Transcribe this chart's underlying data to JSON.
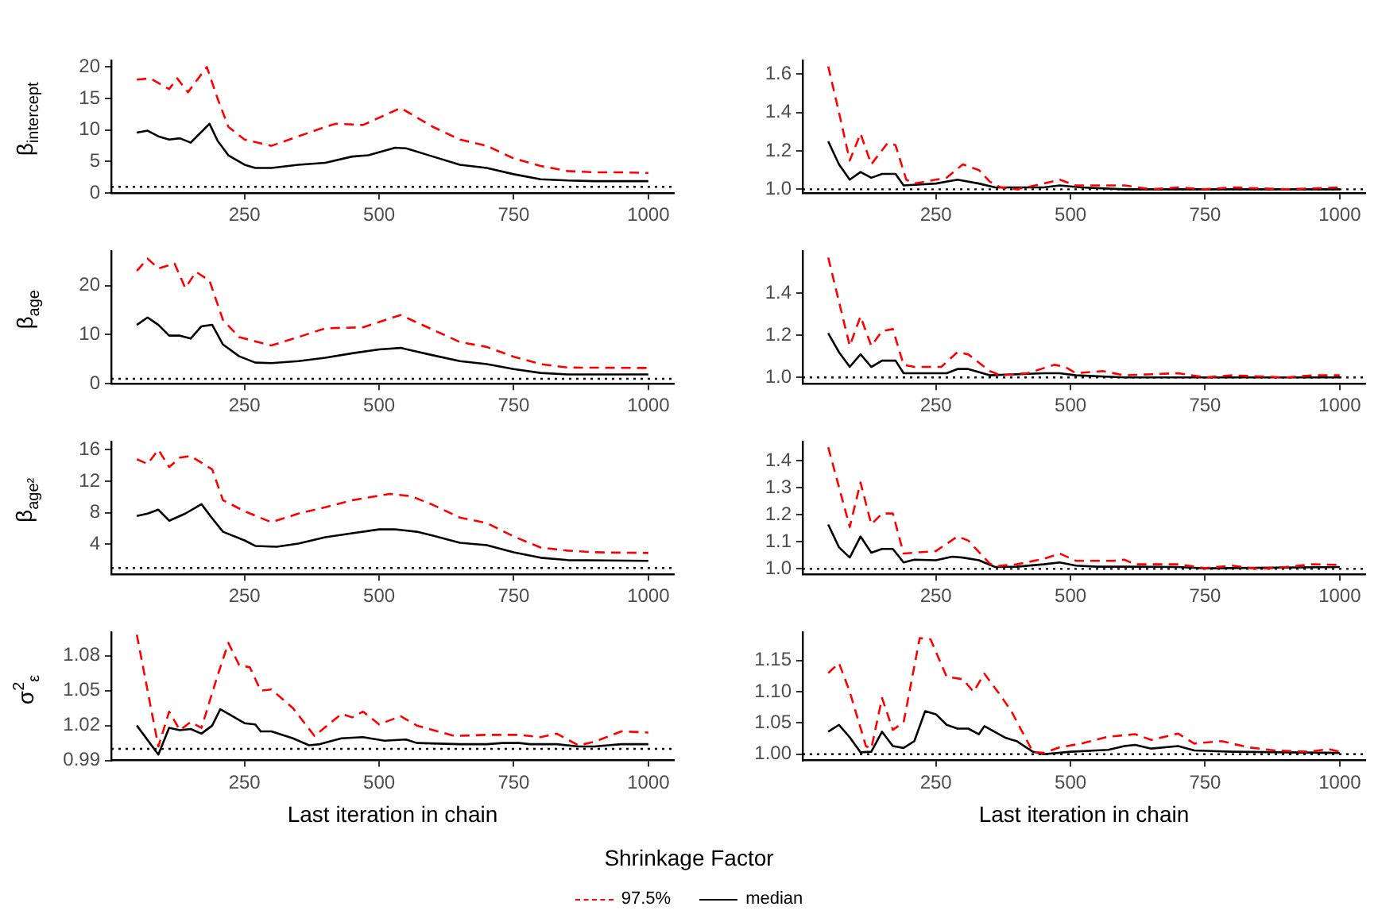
{
  "chart_data": [
    {
      "type": "line",
      "ylabel": "β$_{intercept}$",
      "xlim": [
        2.5,
        1047.5
      ],
      "xticks": [
        250,
        500,
        750,
        1000
      ],
      "ylim": [
        0,
        21
      ],
      "yticks": [
        0,
        5,
        10,
        15,
        20
      ],
      "grid": false,
      "legend": "bottom",
      "legend_title": "Shrinkage Factor",
      "ref_lines": [
        {
          "axis": "y",
          "value": 1,
          "line_style": "dotted",
          "color": "#000000"
        }
      ],
      "series": [
        {
          "name": "97.5%",
          "color": "#ff0000",
          "line_style": "dashed",
          "x": [
            50,
            75,
            110,
            125,
            145,
            180,
            200,
            220,
            250,
            300,
            350,
            400,
            420,
            470,
            540,
            600,
            650,
            700,
            750,
            800,
            850,
            900,
            950,
            1000
          ],
          "values": [
            18,
            18.2,
            16.5,
            18.2,
            16,
            20,
            15,
            10.5,
            8.5,
            7.5,
            9,
            10.5,
            11,
            10.8,
            13.5,
            10.5,
            8.5,
            7.5,
            5.5,
            4.3,
            3.5,
            3.3,
            3.3,
            3.2
          ]
        },
        {
          "name": "median",
          "color": "#000000",
          "line_style": "solid",
          "x": [
            50,
            70,
            90,
            110,
            130,
            150,
            185,
            200,
            220,
            250,
            270,
            300,
            350,
            400,
            450,
            480,
            530,
            550,
            600,
            650,
            700,
            750,
            800,
            850,
            900,
            1000
          ],
          "values": [
            9.6,
            9.9,
            9,
            8.5,
            8.7,
            8,
            11,
            8.3,
            6,
            4.5,
            4,
            4,
            4.5,
            4.8,
            5.8,
            6,
            7.2,
            7.1,
            5.8,
            4.5,
            4,
            3,
            2.2,
            2,
            1.9,
            1.9
          ]
        }
      ]
    },
    {
      "type": "line",
      "xlim": [
        2.5,
        1047.5
      ],
      "xticks": [
        250,
        500,
        750,
        1000
      ],
      "ylim": [
        0.98,
        1.67
      ],
      "yticks": [
        {
          "value": 1,
          "label": "1.0"
        },
        1.2,
        1.4,
        1.6
      ],
      "grid": false,
      "ref_lines": [
        {
          "axis": "y",
          "value": 1,
          "line_style": "dotted",
          "color": "#000000"
        }
      ],
      "series": [
        {
          "color": "#ff0000",
          "line_style": "dashed",
          "x": [
            50,
            70,
            90,
            110,
            130,
            160,
            175,
            195,
            210,
            250,
            270,
            300,
            330,
            350,
            370,
            400,
            450,
            480,
            510,
            600,
            650,
            700,
            750,
            800,
            900,
            1000
          ],
          "values": [
            1.64,
            1.4,
            1.15,
            1.29,
            1.13,
            1.24,
            1.23,
            1.05,
            1.03,
            1.05,
            1.06,
            1.13,
            1.1,
            1.04,
            1.01,
            1.0,
            1.03,
            1.05,
            1.02,
            1.02,
            1.0,
            1.01,
            1.0,
            1.01,
            1.0,
            1.01
          ]
        },
        {
          "color": "#000000",
          "line_style": "solid",
          "x": [
            50,
            70,
            90,
            110,
            130,
            150,
            175,
            190,
            250,
            290,
            330,
            360,
            450,
            480,
            520,
            600,
            700,
            800,
            1000
          ],
          "values": [
            1.25,
            1.13,
            1.05,
            1.09,
            1.06,
            1.08,
            1.08,
            1.02,
            1.03,
            1.05,
            1.03,
            1.01,
            1.01,
            1.02,
            1.01,
            1.0,
            1.0,
            1.0,
            1.0
          ]
        }
      ]
    },
    {
      "type": "line",
      "ylabel": "β$_{age}$",
      "xlim": [
        2.5,
        1047.5
      ],
      "xticks": [
        250,
        500,
        750,
        1000
      ],
      "ylim": [
        0,
        27
      ],
      "yticks": [
        0,
        10,
        20
      ],
      "grid": false,
      "ref_lines": [
        {
          "axis": "y",
          "value": 1,
          "line_style": "dotted",
          "color": "#000000"
        }
      ],
      "series": [
        {
          "color": "#ff0000",
          "line_style": "dashed",
          "x": [
            50,
            70,
            90,
            120,
            140,
            160,
            185,
            210,
            240,
            300,
            350,
            400,
            470,
            540,
            600,
            650,
            700,
            750,
            800,
            850,
            1000
          ],
          "values": [
            23,
            25.5,
            23.5,
            24.5,
            19.5,
            22.8,
            21,
            13,
            9.5,
            7.8,
            9.5,
            11.3,
            11.5,
            14,
            11,
            8.5,
            7.5,
            5.5,
            4,
            3.3,
            3.2
          ]
        },
        {
          "color": "#000000",
          "line_style": "solid",
          "x": [
            50,
            70,
            90,
            110,
            130,
            150,
            170,
            190,
            210,
            240,
            270,
            300,
            350,
            400,
            450,
            500,
            540,
            600,
            650,
            700,
            750,
            800,
            850,
            1000
          ],
          "values": [
            12,
            13.5,
            12,
            9.8,
            9.8,
            9.2,
            11.7,
            12,
            8,
            5.6,
            4.3,
            4.2,
            4.6,
            5.3,
            6.2,
            7,
            7.3,
            5.8,
            4.6,
            4,
            3,
            2.2,
            1.9,
            1.9
          ]
        }
      ]
    },
    {
      "type": "line",
      "xlim": [
        2.5,
        1047.5
      ],
      "xticks": [
        250,
        500,
        750,
        1000
      ],
      "ylim": [
        0.97,
        1.6
      ],
      "yticks": [
        {
          "value": 1,
          "label": "1.0"
        },
        1.2,
        1.4
      ],
      "grid": false,
      "ref_lines": [
        {
          "axis": "y",
          "value": 1,
          "line_style": "dotted",
          "color": "#000000"
        }
      ],
      "series": [
        {
          "color": "#ff0000",
          "line_style": "dashed",
          "x": [
            50,
            90,
            110,
            130,
            150,
            170,
            190,
            210,
            260,
            290,
            310,
            350,
            370,
            420,
            470,
            490,
            510,
            560,
            600,
            700,
            750,
            800,
            900,
            950,
            1000
          ],
          "values": [
            1.57,
            1.15,
            1.29,
            1.15,
            1.22,
            1.23,
            1.06,
            1.05,
            1.05,
            1.12,
            1.11,
            1.03,
            1.01,
            1.02,
            1.06,
            1.05,
            1.02,
            1.03,
            1.01,
            1.02,
            1.0,
            1.01,
            1.0,
            1.01,
            1.01
          ]
        },
        {
          "color": "#000000",
          "line_style": "solid",
          "x": [
            50,
            70,
            90,
            110,
            130,
            150,
            175,
            190,
            250,
            270,
            290,
            310,
            350,
            450,
            480,
            510,
            600,
            700,
            1000
          ],
          "values": [
            1.21,
            1.12,
            1.05,
            1.11,
            1.05,
            1.08,
            1.08,
            1.02,
            1.02,
            1.02,
            1.04,
            1.04,
            1.01,
            1.02,
            1.02,
            1.01,
            1.0,
            1.0,
            1.0
          ]
        }
      ]
    },
    {
      "type": "line",
      "ylabel": "β$_{age²}$",
      "xlim": [
        2.5,
        1047.5
      ],
      "xticks": [
        250,
        500,
        750,
        1000
      ],
      "ylim": [
        0.2,
        17
      ],
      "yticks": [
        4,
        8,
        12,
        16
      ],
      "grid": false,
      "ref_lines": [
        {
          "axis": "y",
          "value": 1,
          "line_style": "dotted",
          "color": "#000000"
        }
      ],
      "series": [
        {
          "color": "#ff0000",
          "line_style": "dashed",
          "x": [
            50,
            70,
            90,
            110,
            130,
            150,
            190,
            210,
            250,
            300,
            350,
            400,
            450,
            520,
            560,
            600,
            650,
            700,
            750,
            800,
            850,
            900,
            1000
          ],
          "values": [
            14.8,
            14.2,
            16,
            13.8,
            15,
            15.2,
            13.5,
            9.6,
            8.2,
            6.8,
            7.9,
            8.7,
            9.6,
            10.4,
            10.1,
            9,
            7.4,
            6.7,
            5,
            3.6,
            3.2,
            3,
            2.9
          ]
        },
        {
          "color": "#000000",
          "line_style": "solid",
          "x": [
            50,
            70,
            90,
            110,
            140,
            170,
            190,
            210,
            250,
            270,
            310,
            350,
            400,
            450,
            500,
            530,
            570,
            600,
            650,
            700,
            750,
            800,
            850,
            1000
          ],
          "values": [
            7.6,
            7.9,
            8.4,
            7,
            7.9,
            9.1,
            7.3,
            5.6,
            4.5,
            3.8,
            3.7,
            4.1,
            4.9,
            5.4,
            5.9,
            5.9,
            5.6,
            5.1,
            4.2,
            3.9,
            3,
            2.3,
            2,
            1.9
          ]
        }
      ]
    },
    {
      "type": "line",
      "xlim": [
        2.5,
        1047.5
      ],
      "xticks": [
        250,
        500,
        750,
        1000
      ],
      "ylim": [
        0.98,
        1.47
      ],
      "yticks": [
        {
          "value": 1,
          "label": "1.0"
        },
        1.1,
        1.2,
        1.3,
        1.4
      ],
      "grid": false,
      "ref_lines": [
        {
          "axis": "y",
          "value": 1,
          "line_style": "dotted",
          "color": "#000000"
        }
      ],
      "series": [
        {
          "color": "#ff0000",
          "line_style": "dashed",
          "x": [
            50,
            90,
            110,
            130,
            150,
            170,
            190,
            250,
            290,
            310,
            350,
            360,
            400,
            450,
            480,
            510,
            580,
            600,
            620,
            700,
            750,
            800,
            850,
            900,
            950,
            1000
          ],
          "values": [
            1.45,
            1.155,
            1.32,
            1.165,
            1.205,
            1.205,
            1.057,
            1.066,
            1.12,
            1.105,
            1.02,
            1.01,
            1.017,
            1.037,
            1.057,
            1.03,
            1.03,
            1.034,
            1.017,
            1.017,
            1.003,
            1.012,
            1.0,
            1.007,
            1.017,
            1.015
          ]
        },
        {
          "color": "#000000",
          "line_style": "solid",
          "x": [
            50,
            70,
            90,
            110,
            130,
            150,
            170,
            190,
            210,
            250,
            280,
            300,
            330,
            360,
            400,
            450,
            480,
            510,
            550,
            600,
            700,
            750,
            1000
          ],
          "values": [
            1.164,
            1.08,
            1.042,
            1.12,
            1.06,
            1.074,
            1.074,
            1.024,
            1.034,
            1.032,
            1.045,
            1.042,
            1.032,
            1.007,
            1.008,
            1.017,
            1.024,
            1.012,
            1.008,
            1.008,
            1.007,
            1.002,
            1.007
          ]
        }
      ]
    },
    {
      "type": "line",
      "ylabel": "σ$^{2}$$_{ε}$",
      "xlabel": "Last iteration in chain",
      "xlim": [
        2.5,
        1047.5
      ],
      "xticks": [
        250,
        500,
        750,
        1000
      ],
      "ylim": [
        0.99,
        1.1
      ],
      "yticks": [
        0.99,
        1.02,
        1.05,
        1.08
      ],
      "grid": false,
      "ref_lines": [
        {
          "axis": "y",
          "value": 1,
          "line_style": "dotted",
          "color": "#000000"
        }
      ],
      "series": [
        {
          "color": "#ff0000",
          "line_style": "dashed",
          "x": [
            50,
            90,
            110,
            130,
            150,
            170,
            200,
            220,
            240,
            260,
            280,
            300,
            340,
            380,
            430,
            450,
            470,
            500,
            540,
            570,
            640,
            700,
            760,
            800,
            830,
            870,
            900,
            950,
            1000
          ],
          "values": [
            1.098,
            1.002,
            1.032,
            1.016,
            1.023,
            1.018,
            1.063,
            1.091,
            1.072,
            1.07,
            1.05,
            1.051,
            1.035,
            1.011,
            1.03,
            1.027,
            1.032,
            1.021,
            1.028,
            1.02,
            1.011,
            1.012,
            1.012,
            1.01,
            1.013,
            1.003,
            1.006,
            1.015,
            1.014
          ]
        },
        {
          "color": "#000000",
          "line_style": "solid",
          "x": [
            50,
            90,
            110,
            130,
            150,
            170,
            190,
            205,
            220,
            250,
            270,
            280,
            300,
            340,
            370,
            390,
            430,
            470,
            510,
            550,
            570,
            650,
            700,
            730,
            760,
            780,
            830,
            870,
            900,
            950,
            1000
          ],
          "values": [
            1.02,
            0.995,
            1.018,
            1.016,
            1.017,
            1.013,
            1.02,
            1.034,
            1.03,
            1.022,
            1.021,
            1.015,
            1.015,
            1.009,
            1.003,
            1.004,
            1.009,
            1.01,
            1.007,
            1.008,
            1.005,
            1.004,
            1.004,
            1.005,
            1.005,
            1.004,
            1.004,
            1.002,
            1.002,
            1.004,
            1.004
          ]
        }
      ]
    },
    {
      "type": "line",
      "xlabel": "Last iteration in chain",
      "xlim": [
        2.5,
        1047.5
      ],
      "xticks": [
        250,
        500,
        750,
        1000
      ],
      "ylim": [
        0.99,
        1.195
      ],
      "yticks": [
        {
          "value": 1,
          "label": "1.00"
        },
        {
          "value": 1.05,
          "label": "1.05"
        },
        {
          "value": 1.1,
          "label": "1.10"
        },
        1.15
      ],
      "grid": false,
      "ref_lines": [
        {
          "axis": "y",
          "value": 1,
          "line_style": "dotted",
          "color": "#000000"
        }
      ],
      "series": [
        {
          "color": "#ff0000",
          "line_style": "dashed",
          "x": [
            50,
            70,
            90,
            120,
            130,
            150,
            170,
            190,
            220,
            240,
            270,
            300,
            320,
            340,
            370,
            390,
            430,
            450,
            480,
            520,
            570,
            620,
            650,
            700,
            730,
            780,
            830,
            880,
            940,
            980,
            1000
          ],
          "values": [
            1.13,
            1.146,
            1.1,
            1.013,
            1.009,
            1.09,
            1.039,
            1.051,
            1.186,
            1.184,
            1.124,
            1.12,
            1.1,
            1.129,
            1.094,
            1.069,
            1.004,
            1.002,
            1.011,
            1.017,
            1.028,
            1.032,
            1.023,
            1.033,
            1.017,
            1.021,
            1.011,
            1.006,
            1.004,
            1.008,
            1.004
          ]
        },
        {
          "color": "#000000",
          "line_style": "solid",
          "x": [
            50,
            70,
            90,
            110,
            130,
            150,
            170,
            190,
            210,
            230,
            250,
            270,
            290,
            310,
            330,
            340,
            380,
            400,
            430,
            450,
            500,
            570,
            600,
            620,
            650,
            700,
            730,
            800,
            1000
          ],
          "values": [
            1.036,
            1.047,
            1.027,
            1.003,
            1.004,
            1.036,
            1.013,
            1.01,
            1.021,
            1.069,
            1.064,
            1.047,
            1.041,
            1.041,
            1.032,
            1.045,
            1.026,
            1.021,
            1.004,
            1.0,
            1.004,
            1.007,
            1.013,
            1.015,
            1.009,
            1.013,
            1.006,
            1.004,
            1.002
          ]
        }
      ]
    }
  ]
}
